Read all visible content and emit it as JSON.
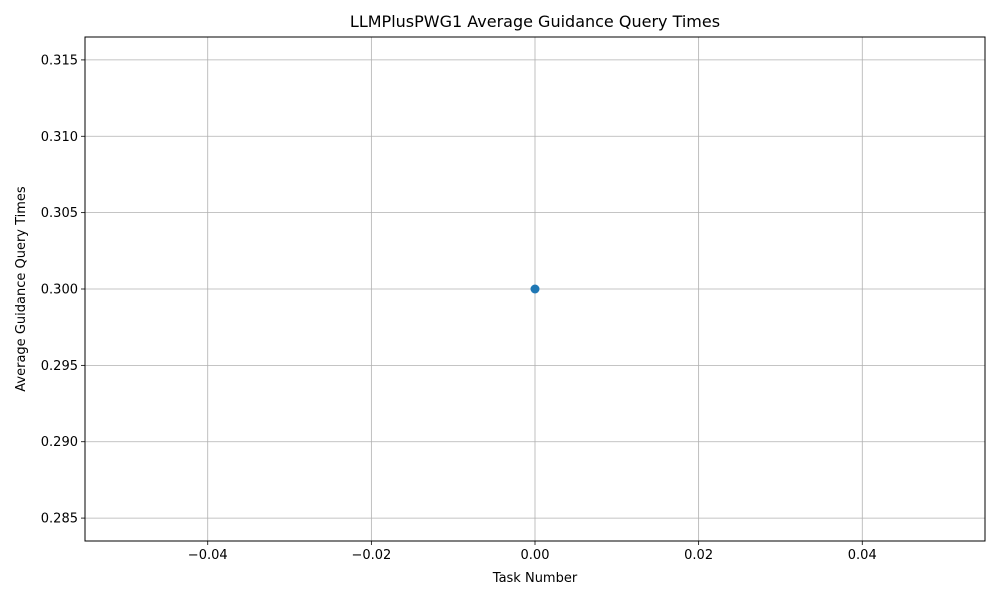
{
  "chart_data": {
    "type": "line",
    "title": "LLMPlusPWG1 Average Guidance Query Times",
    "xlabel": "Task Number",
    "ylabel": "Average Guidance Query Times",
    "xlim": [
      -0.055,
      0.055
    ],
    "ylim": [
      0.2835,
      0.3165
    ],
    "xticks": [
      -0.04,
      -0.02,
      0.0,
      0.02,
      0.04
    ],
    "xtick_labels": [
      "−0.04",
      "−0.02",
      "0.00",
      "0.02",
      "0.04"
    ],
    "yticks": [
      0.285,
      0.29,
      0.295,
      0.3,
      0.305,
      0.31,
      0.315
    ],
    "ytick_labels": [
      "0.285",
      "0.290",
      "0.295",
      "0.300",
      "0.305",
      "0.310",
      "0.315"
    ],
    "grid": true,
    "series": [
      {
        "x": [
          0
        ],
        "values": [
          0.3
        ],
        "color": "#1f77b4",
        "marker": "circle"
      }
    ]
  }
}
